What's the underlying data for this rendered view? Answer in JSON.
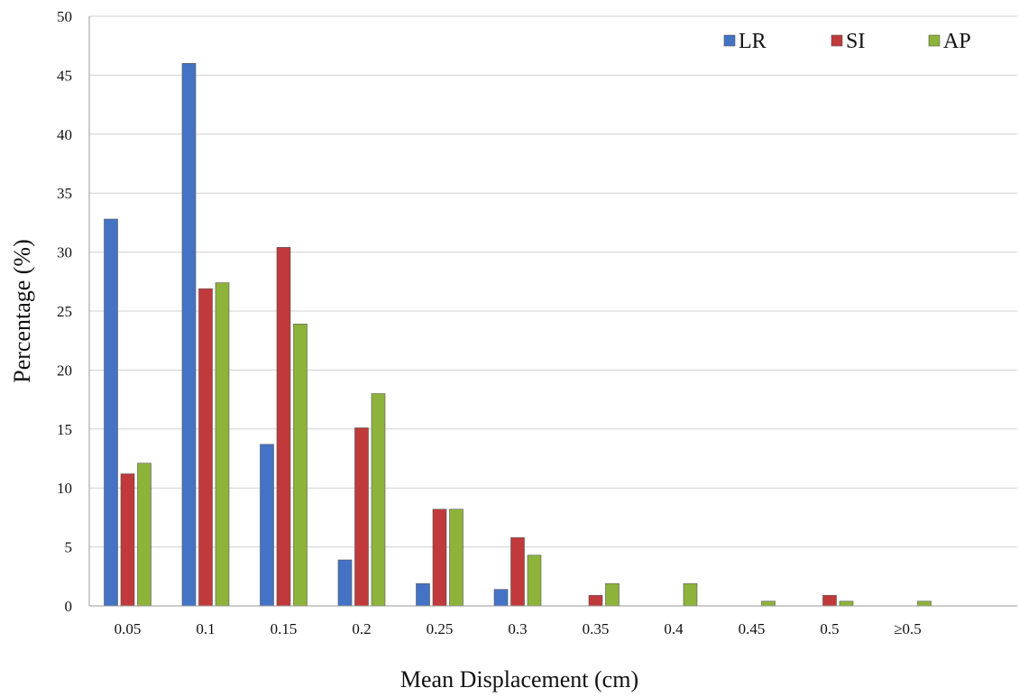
{
  "chart_data": {
    "type": "bar",
    "xlabel": "Mean Displacement (cm)",
    "ylabel": "Percentage (%)",
    "ylim": [
      0,
      50
    ],
    "yticks": [
      0,
      5,
      10,
      15,
      20,
      25,
      30,
      35,
      40,
      45,
      50
    ],
    "grid": true,
    "legend_position": "top-right",
    "categories": [
      "0.05",
      "0.1",
      "0.15",
      "0.2",
      "0.25",
      "0.3",
      "0.35",
      "0.4",
      "0.45",
      "0.5",
      "≥0.5"
    ],
    "series": [
      {
        "name": "LR",
        "color": "#4472c4",
        "values": [
          32.8,
          46.0,
          13.7,
          3.9,
          1.9,
          1.4,
          0,
          0,
          0,
          0,
          0
        ]
      },
      {
        "name": "SI",
        "color": "#c0393b",
        "values": [
          11.2,
          26.9,
          30.4,
          15.1,
          8.2,
          5.8,
          0.9,
          0,
          0,
          0.9,
          0
        ]
      },
      {
        "name": "AP",
        "color": "#8db33a",
        "values": [
          12.1,
          27.4,
          23.9,
          18.0,
          8.2,
          4.3,
          1.9,
          1.9,
          0.4,
          0.4,
          0.4
        ]
      }
    ]
  }
}
